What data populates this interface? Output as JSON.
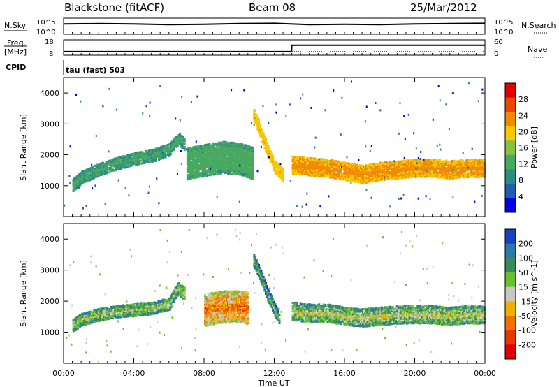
{
  "header": {
    "station": "Blackstone (fitACF)",
    "beam": "Beam 08",
    "date": "25/Mar/2012"
  },
  "panel_labels": {
    "nsky": "N.Sky",
    "nsearch": "N.Search",
    "freq_line1": "Freq.",
    "freq_line2": "[MHz]",
    "nave": "Nave",
    "cpid": "CPID",
    "cpid_value": "tau (fast) 503"
  },
  "chart_data": [
    {
      "type": "line",
      "name": "noise",
      "left_ticks": [
        "10^5",
        "10^0"
      ],
      "right_ticks": [
        "10^5",
        "10^0"
      ],
      "x": [
        "00:00",
        "02:00",
        "04:00",
        "06:00",
        "08:00",
        "10:00",
        "12:00",
        "14:00",
        "16:00",
        "18:00",
        "20:00",
        "22:00",
        "24:00"
      ],
      "values": [
        3.2,
        3.3,
        3.2,
        3.0,
        3.1,
        3.3,
        3.4,
        3.0,
        3.1,
        3.0,
        3.2,
        3.3,
        3.4
      ]
    },
    {
      "type": "line",
      "name": "frequency",
      "left_ticks": [
        "18",
        "8"
      ],
      "right_ticks": [
        "60",
        "0"
      ],
      "x": [
        "00:00",
        "01:00",
        "12:59",
        "13:00",
        "24:00"
      ],
      "freq_values": [
        10.3,
        10.3,
        10.3,
        14.5,
        14.5
      ],
      "nave_values": [
        14,
        14,
        14,
        14,
        14
      ]
    },
    {
      "type": "heatmap",
      "name": "power",
      "ylabel": "Slant Range [km]",
      "ylim": [
        0,
        4500
      ],
      "yticks": [
        "1000",
        "2000",
        "3000",
        "4000"
      ],
      "colorbar_label": "Power [dB]",
      "colorbar_ticks": [
        "28",
        "24",
        "20",
        "16",
        "12",
        "8",
        "4"
      ],
      "colorbar_range": [
        0,
        30
      ],
      "colors": [
        "#0000e6",
        "#1e5fb4",
        "#2a8c82",
        "#48a860",
        "#88c040",
        "#f5c800",
        "#f08a00",
        "#e84800",
        "#e00000"
      ],
      "echo_bands": [
        {
          "t": [
            0.5,
            1,
            2,
            3,
            4,
            5,
            6,
            6.5,
            6.9
          ],
          "r": [
            1000,
            1250,
            1500,
            1700,
            1850,
            1950,
            2150,
            2500,
            2300
          ],
          "w": 180,
          "level": 11
        },
        {
          "t": [
            7,
            8,
            9,
            10,
            10.8
          ],
          "r": [
            1700,
            1800,
            1900,
            1850,
            1700
          ],
          "w": 500,
          "level": 12
        },
        {
          "t": [
            10.8,
            11.2,
            11.6,
            12,
            12.5
          ],
          "r": [
            3300,
            2700,
            2100,
            1600,
            1300
          ],
          "w": 200,
          "level": 20
        },
        {
          "t": [
            13,
            14,
            15,
            16,
            17,
            18,
            19,
            20,
            21,
            22,
            23,
            24
          ],
          "r": [
            1650,
            1600,
            1550,
            1450,
            1350,
            1450,
            1500,
            1550,
            1550,
            1500,
            1550,
            1550
          ],
          "w": 280,
          "level": 22
        }
      ]
    },
    {
      "type": "heatmap",
      "name": "velocity",
      "ylabel": "Slant Range [km]",
      "xlabel": "Time UT",
      "xticks": [
        "00:00",
        "04:00",
        "08:00",
        "12:00",
        "16:00",
        "20:00",
        "00:00"
      ],
      "xlim": [
        0,
        24
      ],
      "ylim": [
        0,
        4500
      ],
      "yticks": [
        "1000",
        "2000",
        "3000",
        "4000"
      ],
      "colorbar_label": "Velocity [m s^-1]",
      "colorbar_ticks": [
        "200",
        "100",
        "50",
        "15",
        "-15",
        "-50",
        "-100",
        "-200"
      ],
      "colors": [
        "#1a3fc0",
        "#2a7aa8",
        "#3a8a5c",
        "#66c030",
        "#c8c8c0",
        "#f0b000",
        "#f07000",
        "#e83800",
        "#e00000"
      ],
      "echo_bands": [
        {
          "t": [
            0.5,
            1,
            2,
            3,
            4,
            5,
            6,
            6.5,
            6.9
          ],
          "r": [
            1200,
            1400,
            1550,
            1650,
            1700,
            1750,
            1900,
            2400,
            2200
          ],
          "w": 180,
          "level": 4
        },
        {
          "t": [
            8,
            8.5,
            9,
            9.5,
            10,
            10.5
          ],
          "r": [
            1700,
            1750,
            1800,
            1800,
            1800,
            1750
          ],
          "w": 500,
          "level": 6
        },
        {
          "t": [
            10.8,
            11.2,
            11.6,
            12,
            12.3
          ],
          "r": [
            3300,
            2800,
            2200,
            1700,
            1400
          ],
          "w": 180,
          "level": 3
        },
        {
          "t": [
            13,
            14,
            15,
            16,
            17,
            18,
            19,
            20,
            21,
            22,
            23,
            24
          ],
          "r": [
            1650,
            1600,
            1600,
            1500,
            1450,
            1500,
            1550,
            1550,
            1550,
            1500,
            1550,
            1550
          ],
          "w": 280,
          "level": 4
        }
      ]
    }
  ]
}
